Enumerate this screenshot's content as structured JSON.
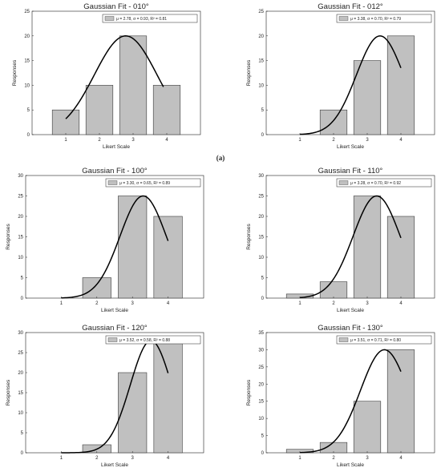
{
  "figure": {
    "panel_label": "(a)"
  },
  "chart_data": [
    {
      "type": "bar",
      "title": "Gaussian Fit -  010°",
      "xlabel": "Likert Scale",
      "ylabel": "Responses",
      "categories": [
        "1",
        "2",
        "3",
        "4"
      ],
      "values": [
        5,
        10,
        20,
        10
      ],
      "ylim": [
        0,
        25
      ],
      "yticks": [
        0,
        5,
        10,
        15,
        20,
        25
      ],
      "legend": {
        "text": "μ = 2.78, σ = 0.93, R² = 0.81",
        "position": "top-right"
      },
      "fit": {
        "type": "gaussian",
        "mu": 2.78,
        "sigma": 0.93,
        "x_start": 1.0,
        "x_end": 3.9
      }
    },
    {
      "type": "bar",
      "title": "Gaussian Fit -  012°",
      "xlabel": "Likert Scale",
      "ylabel": "Responses",
      "categories": [
        "1",
        "2",
        "3",
        "4"
      ],
      "values": [
        0,
        5,
        15,
        20
      ],
      "ylim": [
        0,
        25
      ],
      "yticks": [
        0,
        5,
        10,
        15,
        20,
        25
      ],
      "legend": {
        "text": "μ = 3.38, σ = 0.70, R² = 0.79",
        "position": "top-right"
      },
      "fit": {
        "type": "gaussian",
        "mu": 3.38,
        "sigma": 0.7,
        "x_start": 1.0,
        "x_end": 4.0
      }
    },
    {
      "type": "bar",
      "title": "Gaussian Fit -  100°",
      "xlabel": "Likert Scale",
      "ylabel": "Responses",
      "categories": [
        "1",
        "2",
        "3",
        "4"
      ],
      "values": [
        0,
        5,
        25,
        20
      ],
      "ylim": [
        0,
        30
      ],
      "yticks": [
        0,
        5,
        10,
        15,
        20,
        25,
        30
      ],
      "legend": {
        "text": "μ = 3.30, σ = 0.65, R² = 0.89",
        "position": "top-right"
      },
      "fit": {
        "type": "gaussian",
        "mu": 3.3,
        "sigma": 0.65,
        "x_start": 1.0,
        "x_end": 4.0
      }
    },
    {
      "type": "bar",
      "title": "Gaussian Fit -  110°",
      "xlabel": "Likert Scale",
      "ylabel": "Responses",
      "categories": [
        "1",
        "2",
        "3",
        "4"
      ],
      "values": [
        1,
        4,
        25,
        20
      ],
      "ylim": [
        0,
        30
      ],
      "yticks": [
        0,
        5,
        10,
        15,
        20,
        25,
        30
      ],
      "legend": {
        "text": "μ = 3.28, σ = 0.70, R² = 0.92",
        "position": "top-right"
      },
      "fit": {
        "type": "gaussian",
        "mu": 3.28,
        "sigma": 0.7,
        "x_start": 1.0,
        "x_end": 4.0
      }
    },
    {
      "type": "bar",
      "title": "Gaussian Fit -  120°",
      "xlabel": "Likert Scale",
      "ylabel": "Responses",
      "categories": [
        "1",
        "2",
        "3",
        "4"
      ],
      "values": [
        0,
        2,
        20,
        28
      ],
      "ylim": [
        0,
        30
      ],
      "yticks": [
        0,
        5,
        10,
        15,
        20,
        25,
        30
      ],
      "legend": {
        "text": "μ = 3.52, σ = 0.58, R² = 0.88",
        "position": "top-right"
      },
      "fit": {
        "type": "gaussian",
        "mu": 3.52,
        "sigma": 0.58,
        "x_start": 1.0,
        "x_end": 4.0
      }
    },
    {
      "type": "bar",
      "title": "Gaussian Fit -  130°",
      "xlabel": "Likert Scale",
      "ylabel": "Responses",
      "categories": [
        "1",
        "2",
        "3",
        "4"
      ],
      "values": [
        1,
        3,
        15,
        30
      ],
      "ylim": [
        0,
        35
      ],
      "yticks": [
        0,
        5,
        10,
        15,
        20,
        25,
        30,
        35
      ],
      "legend": {
        "text": "μ = 3.51, σ = 0.71, R² = 0.80",
        "position": "top-right"
      },
      "fit": {
        "type": "gaussian",
        "mu": 3.51,
        "sigma": 0.71,
        "x_start": 1.0,
        "x_end": 4.0
      }
    }
  ],
  "colors": {
    "bar_fill": "#c0c0c0",
    "bar_stroke": "#3a3a3a",
    "axis": "#222222",
    "fit_line": "#000000"
  }
}
